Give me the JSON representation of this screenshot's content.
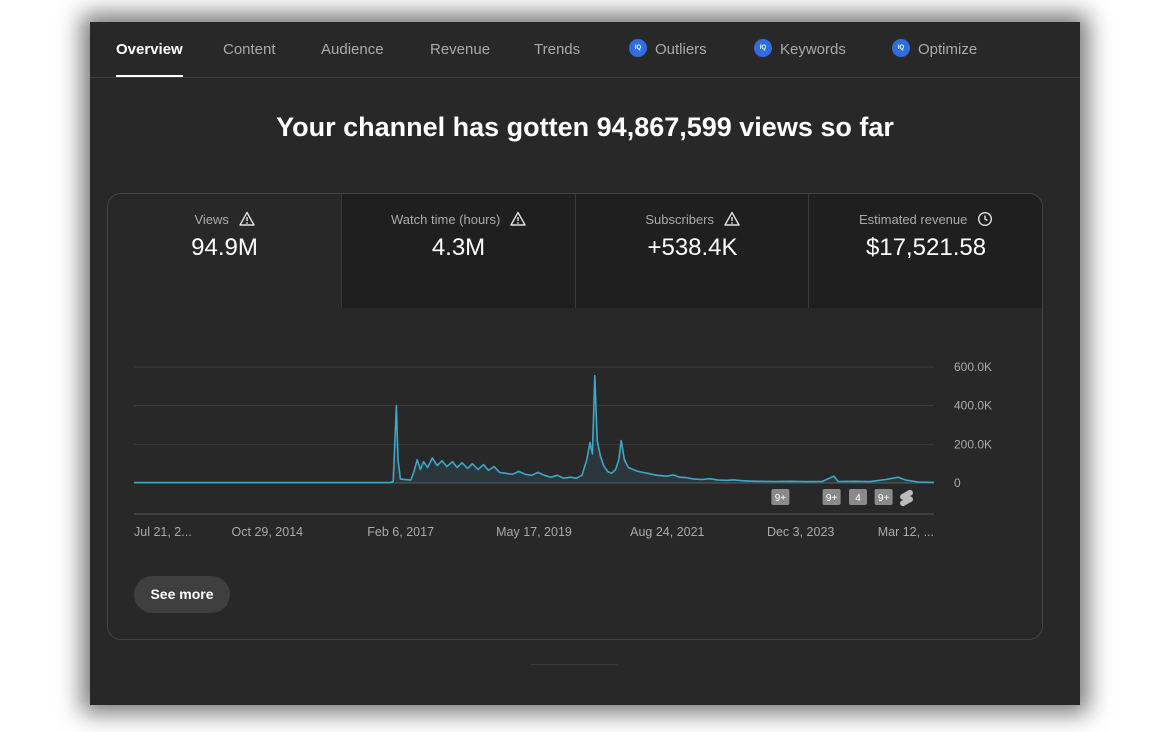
{
  "tabs": [
    {
      "label": "Overview",
      "active": true,
      "vidiq": false
    },
    {
      "label": "Content",
      "active": false,
      "vidiq": false
    },
    {
      "label": "Audience",
      "active": false,
      "vidiq": false
    },
    {
      "label": "Revenue",
      "active": false,
      "vidiq": false
    },
    {
      "label": "Trends",
      "active": false,
      "vidiq": false
    },
    {
      "label": "Outliers",
      "active": false,
      "vidiq": true
    },
    {
      "label": "Keywords",
      "active": false,
      "vidiq": true
    },
    {
      "label": "Optimize",
      "active": false,
      "vidiq": true
    }
  ],
  "vidiq_badge": "IQ",
  "headline": "Your channel has gotten 94,867,599 views so far",
  "metrics": [
    {
      "label": "Views",
      "value": "94.9M",
      "icon": "warning-icon"
    },
    {
      "label": "Watch time (hours)",
      "value": "4.3M",
      "icon": "warning-icon"
    },
    {
      "label": "Subscribers",
      "value": "+538.4K",
      "icon": "warning-icon"
    },
    {
      "label": "Estimated revenue",
      "value": "$17,521.58",
      "icon": "clock-icon"
    }
  ],
  "chart_data": {
    "type": "line",
    "series_color": "#3ea6c9",
    "x_tick_labels": [
      "Jul 21, 2...",
      "Oct 29, 2014",
      "Feb 6, 2017",
      "May 17, 2019",
      "Aug 24, 2021",
      "Dec 3, 2023",
      "Mar 12, ..."
    ],
    "y_tick_labels": [
      "0",
      "200.0K",
      "400.0K",
      "600.0K"
    ],
    "y_ticks": [
      0,
      200000,
      400000,
      600000
    ],
    "ylim": [
      0,
      600000
    ],
    "x_range": [
      0,
      100
    ],
    "points": [
      [
        0,
        2000
      ],
      [
        32.0,
        2000
      ],
      [
        32.4,
        8000
      ],
      [
        32.8,
        400000
      ],
      [
        33.0,
        120000
      ],
      [
        33.3,
        20000
      ],
      [
        34.6,
        15000
      ],
      [
        35.0,
        60000
      ],
      [
        35.4,
        120000
      ],
      [
        35.8,
        70000
      ],
      [
        36.2,
        110000
      ],
      [
        36.7,
        80000
      ],
      [
        37.3,
        130000
      ],
      [
        37.9,
        90000
      ],
      [
        38.5,
        115000
      ],
      [
        39.1,
        85000
      ],
      [
        39.8,
        110000
      ],
      [
        40.4,
        80000
      ],
      [
        41.0,
        105000
      ],
      [
        41.7,
        75000
      ],
      [
        42.3,
        100000
      ],
      [
        43.0,
        70000
      ],
      [
        43.7,
        95000
      ],
      [
        44.3,
        65000
      ],
      [
        45.0,
        85000
      ],
      [
        45.7,
        55000
      ],
      [
        46.5,
        50000
      ],
      [
        47.3,
        45000
      ],
      [
        48.1,
        60000
      ],
      [
        48.9,
        45000
      ],
      [
        49.7,
        40000
      ],
      [
        50.5,
        55000
      ],
      [
        51.3,
        40000
      ],
      [
        52.1,
        30000
      ],
      [
        52.9,
        40000
      ],
      [
        53.7,
        25000
      ],
      [
        54.5,
        30000
      ],
      [
        55.3,
        25000
      ],
      [
        56.0,
        40000
      ],
      [
        56.6,
        120000
      ],
      [
        57.0,
        210000
      ],
      [
        57.3,
        150000
      ],
      [
        57.6,
        555000
      ],
      [
        57.9,
        220000
      ],
      [
        58.3,
        140000
      ],
      [
        58.7,
        90000
      ],
      [
        59.2,
        60000
      ],
      [
        59.7,
        50000
      ],
      [
        60.2,
        70000
      ],
      [
        60.6,
        120000
      ],
      [
        60.9,
        220000
      ],
      [
        61.3,
        120000
      ],
      [
        61.8,
        80000
      ],
      [
        62.4,
        70000
      ],
      [
        63.0,
        60000
      ],
      [
        63.6,
        55000
      ],
      [
        64.2,
        50000
      ],
      [
        64.8,
        45000
      ],
      [
        65.4,
        40000
      ],
      [
        66.0,
        38000
      ],
      [
        66.6,
        35000
      ],
      [
        67.4,
        42000
      ],
      [
        68.2,
        30000
      ],
      [
        69.0,
        28000
      ],
      [
        70.0,
        20000
      ],
      [
        71.0,
        18000
      ],
      [
        72.0,
        22000
      ],
      [
        73.0,
        15000
      ],
      [
        74.0,
        14000
      ],
      [
        75.0,
        16000
      ],
      [
        76.0,
        12000
      ],
      [
        77.0,
        10000
      ],
      [
        78.0,
        9000
      ],
      [
        80.0,
        8000
      ],
      [
        82.0,
        9000
      ],
      [
        84.0,
        7000
      ],
      [
        86.0,
        8000
      ],
      [
        87.5,
        35000
      ],
      [
        88.0,
        8000
      ],
      [
        90.0,
        9000
      ],
      [
        92.0,
        7000
      ],
      [
        94.0,
        18000
      ],
      [
        95.5,
        30000
      ],
      [
        96.5,
        15000
      ],
      [
        98.0,
        5000
      ],
      [
        100,
        3000
      ]
    ],
    "annotations": [
      {
        "x": 80.8,
        "label": "9+",
        "icon": false
      },
      {
        "x": 87.2,
        "label": "9+",
        "icon": false
      },
      {
        "x": 90.5,
        "label": "4",
        "icon": false
      },
      {
        "x": 93.7,
        "label": "9+",
        "icon": false
      },
      {
        "x": 96.5,
        "label": "",
        "icon": true
      }
    ]
  },
  "see_more_label": "See more"
}
